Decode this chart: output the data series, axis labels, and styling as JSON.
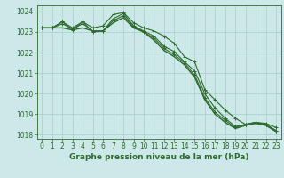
{
  "x": [
    0,
    1,
    2,
    3,
    4,
    5,
    6,
    7,
    8,
    9,
    10,
    11,
    12,
    13,
    14,
    15,
    16,
    17,
    18,
    19,
    20,
    21,
    22,
    23
  ],
  "line1": [
    1023.2,
    1023.2,
    1023.5,
    1023.2,
    1023.5,
    1023.2,
    1023.3,
    1023.85,
    1023.95,
    1023.45,
    1023.2,
    1023.05,
    1022.8,
    1022.45,
    1021.8,
    1021.55,
    1020.2,
    1019.7,
    1019.2,
    1018.8,
    1018.5,
    1018.6,
    1018.55,
    1018.35
  ],
  "line2": [
    1023.2,
    1023.2,
    1023.5,
    1023.1,
    1023.5,
    1023.0,
    1023.05,
    1023.65,
    1023.9,
    1023.3,
    1023.05,
    1022.8,
    1022.3,
    1022.05,
    1021.55,
    1021.1,
    1020.0,
    1019.3,
    1018.8,
    1018.4,
    1018.5,
    1018.6,
    1018.5,
    1018.2
  ],
  "line3": [
    1023.2,
    1023.2,
    1023.4,
    1023.15,
    1023.4,
    1023.05,
    1023.05,
    1023.55,
    1023.8,
    1023.25,
    1023.0,
    1022.7,
    1022.2,
    1021.9,
    1021.5,
    1020.9,
    1019.8,
    1019.1,
    1018.7,
    1018.35,
    1018.5,
    1018.6,
    1018.5,
    1018.2
  ],
  "line4": [
    1023.2,
    1023.2,
    1023.2,
    1023.1,
    1023.2,
    1023.05,
    1023.05,
    1023.45,
    1023.7,
    1023.2,
    1023.0,
    1022.6,
    1022.1,
    1021.8,
    1021.4,
    1020.8,
    1019.7,
    1019.0,
    1018.6,
    1018.3,
    1018.45,
    1018.55,
    1018.45,
    1018.15
  ],
  "background_color": "#cce8e8",
  "grid_color": "#aacccc",
  "ylim": [
    1017.8,
    1024.3
  ],
  "yticks": [
    1018,
    1019,
    1020,
    1021,
    1022,
    1023,
    1024
  ],
  "xticks": [
    0,
    1,
    2,
    3,
    4,
    5,
    6,
    7,
    8,
    9,
    10,
    11,
    12,
    13,
    14,
    15,
    16,
    17,
    18,
    19,
    20,
    21,
    22,
    23
  ],
  "xlabel": "Graphe pression niveau de la mer (hPa)",
  "xlabel_fontsize": 6.5,
  "tick_fontsize": 5.5,
  "line_color": "#2d6a2d",
  "axis_color": "#2d6a2d"
}
